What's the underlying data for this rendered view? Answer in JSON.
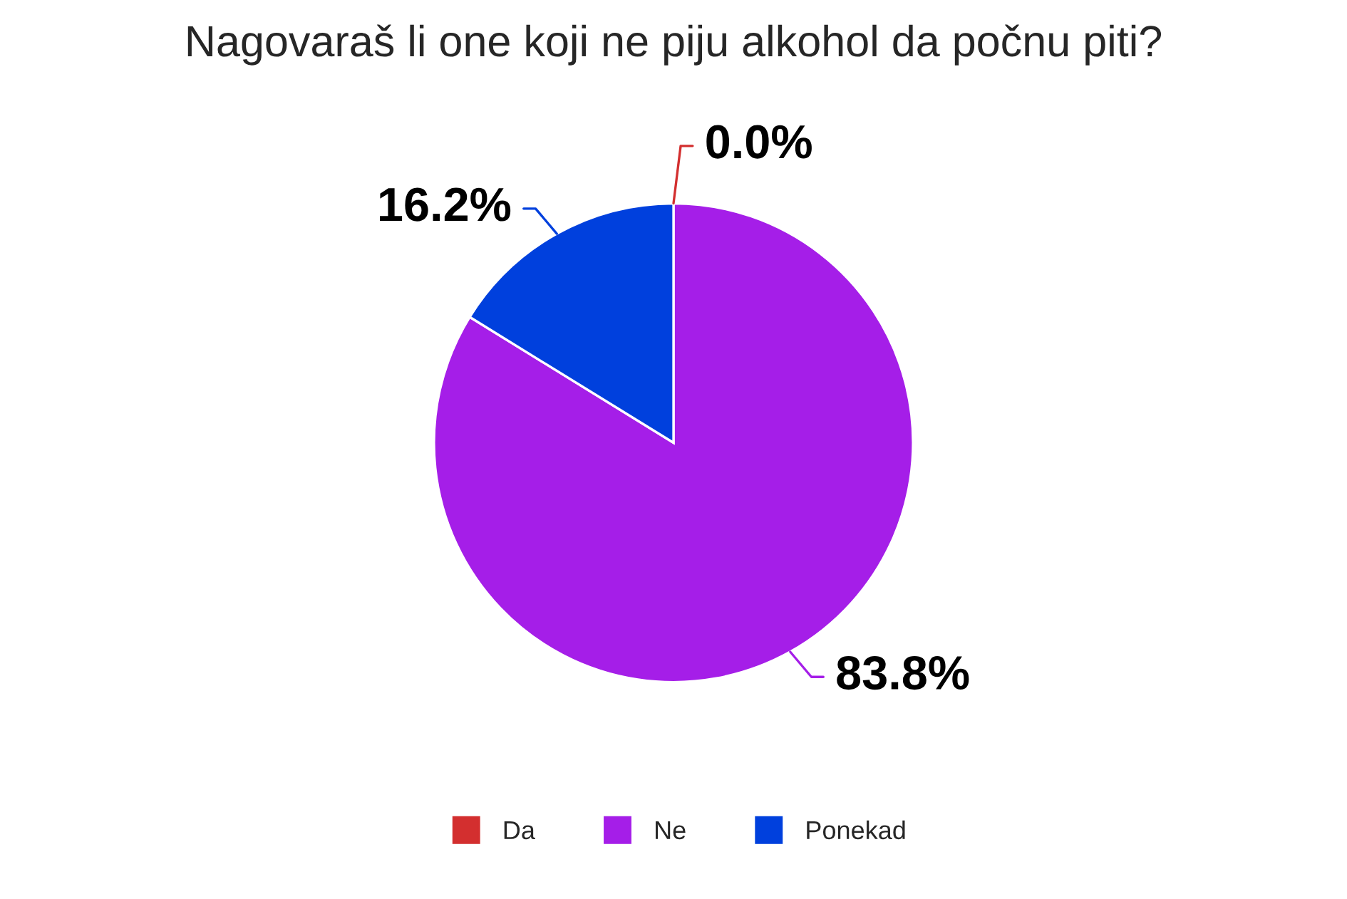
{
  "chart_data": {
    "type": "pie",
    "title": "Nagovaraš li one koji ne piju alkohol da počnu piti?",
    "categories": [
      "Da",
      "Ne",
      "Ponekad"
    ],
    "values": [
      0.0,
      83.8,
      16.2
    ],
    "colors": [
      "#d32f2f",
      "#a51ee8",
      "#0040dd"
    ],
    "value_labels": [
      "0.0%",
      "83.8%",
      "16.2%"
    ],
    "legend": "bottom"
  }
}
